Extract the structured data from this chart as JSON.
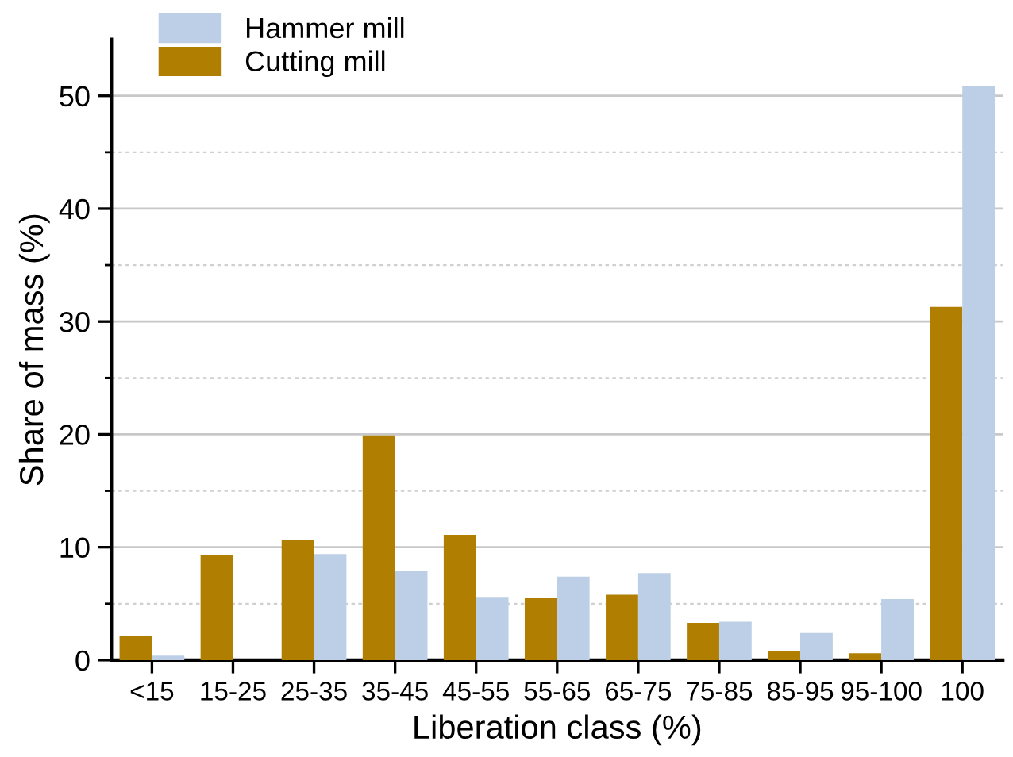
{
  "chart_data": {
    "type": "bar",
    "xlabel": "Liberation class (%)",
    "ylabel": "Share of mass (%)",
    "categories": [
      "<15",
      "15-25",
      "25-35",
      "35-45",
      "45-55",
      "55-65",
      "65-75",
      "75-85",
      "85-95",
      "95-100",
      "100"
    ],
    "series": [
      {
        "name": "Hammer mill",
        "color": "#bccfe6",
        "values": [
          0.4,
          0,
          9.4,
          7.9,
          5.6,
          7.4,
          7.7,
          3.4,
          2.4,
          5.4,
          50.9
        ]
      },
      {
        "name": "Cutting mill",
        "color": "#b07e00",
        "values": [
          2.1,
          9.3,
          10.6,
          19.9,
          11.1,
          5.5,
          5.8,
          3.3,
          0.8,
          0.6,
          31.3
        ]
      }
    ],
    "ylim": [
      0,
      55
    ],
    "yticks": [
      0,
      {
        "value": 5,
        "label": null
      },
      10,
      {
        "value": 15,
        "label": null
      },
      20,
      {
        "value": 25,
        "label": null
      },
      30,
      {
        "value": 35,
        "label": null
      },
      40,
      {
        "value": 45,
        "label": null
      },
      50
    ],
    "grid": "y",
    "legend": "top left"
  }
}
